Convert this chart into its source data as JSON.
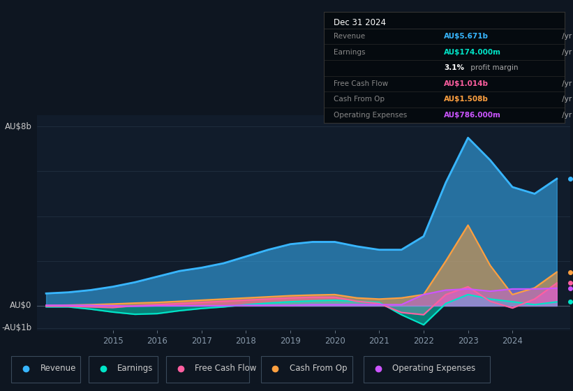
{
  "bg_color": "#0e1621",
  "plot_bg_color": "#111c2b",
  "info_box_bg": "#050a0f",
  "info_box": {
    "title": "Dec 31 2024",
    "rows": [
      {
        "label": "Revenue",
        "value": "AU$5.671b",
        "suffix": " /yr",
        "color": "#38b6ff"
      },
      {
        "label": "Earnings",
        "value": "AU$174.000m",
        "suffix": " /yr",
        "color": "#00e5c8"
      },
      {
        "label": "",
        "value": "3.1%",
        "suffix": " profit margin",
        "color": "#ffffff"
      },
      {
        "label": "Free Cash Flow",
        "value": "AU$1.014b",
        "suffix": " /yr",
        "color": "#ff5fa0"
      },
      {
        "label": "Cash From Op",
        "value": "AU$1.508b",
        "suffix": " /yr",
        "color": "#ffa040"
      },
      {
        "label": "Operating Expenses",
        "value": "AU$786.000m",
        "suffix": " /yr",
        "color": "#cc55ff"
      }
    ]
  },
  "years": [
    2013.5,
    2014.0,
    2014.5,
    2015.0,
    2015.5,
    2016.0,
    2016.5,
    2017.0,
    2017.5,
    2018.0,
    2018.5,
    2019.0,
    2019.5,
    2020.0,
    2020.5,
    2021.0,
    2021.5,
    2022.0,
    2022.5,
    2023.0,
    2023.5,
    2024.0,
    2024.5,
    2025.0
  ],
  "revenue": [
    0.55,
    0.6,
    0.7,
    0.85,
    1.05,
    1.3,
    1.55,
    1.7,
    1.9,
    2.2,
    2.5,
    2.75,
    2.85,
    2.85,
    2.65,
    2.5,
    2.5,
    3.1,
    5.5,
    7.5,
    6.5,
    5.3,
    5.0,
    5.671
  ],
  "earnings": [
    -0.05,
    -0.05,
    -0.15,
    -0.28,
    -0.38,
    -0.35,
    -0.22,
    -0.12,
    -0.05,
    0.05,
    0.12,
    0.18,
    0.22,
    0.25,
    0.2,
    0.15,
    -0.4,
    -0.85,
    0.1,
    0.5,
    0.3,
    0.18,
    0.05,
    0.174
  ],
  "free_cash_flow": [
    -0.02,
    -0.02,
    -0.05,
    -0.08,
    0.0,
    0.05,
    0.1,
    0.15,
    0.2,
    0.25,
    0.3,
    0.35,
    0.38,
    0.38,
    0.2,
    0.1,
    -0.3,
    -0.4,
    0.5,
    0.85,
    0.2,
    -0.1,
    0.3,
    1.014
  ],
  "cash_from_op": [
    0.02,
    0.03,
    0.05,
    0.08,
    0.12,
    0.15,
    0.2,
    0.25,
    0.3,
    0.35,
    0.4,
    0.45,
    0.48,
    0.5,
    0.35,
    0.3,
    0.35,
    0.5,
    2.0,
    3.6,
    1.8,
    0.5,
    0.8,
    1.508
  ],
  "op_expenses": [
    0.02,
    0.02,
    0.02,
    0.0,
    -0.02,
    0.0,
    0.0,
    0.0,
    0.0,
    0.02,
    0.02,
    0.02,
    0.05,
    0.05,
    0.05,
    0.05,
    0.05,
    0.5,
    0.7,
    0.75,
    0.65,
    0.75,
    0.75,
    0.786
  ],
  "revenue_color": "#38b6ff",
  "earnings_color": "#00e5c8",
  "fcf_color": "#ff5fa0",
  "cash_op_color": "#ffa040",
  "op_exp_color": "#cc55ff",
  "xlim": [
    2013.3,
    2025.3
  ],
  "ylim": [
    -1.1,
    8.5
  ],
  "ytick_labels": [
    [
      "AU$8b",
      8.0
    ],
    [
      "AU$0",
      0.0
    ],
    [
      "-AU$1b",
      -1.0
    ]
  ],
  "xtick_years": [
    2015,
    2016,
    2017,
    2018,
    2019,
    2020,
    2021,
    2022,
    2023,
    2024
  ],
  "grid_y": [
    -1.0,
    0.0,
    2.0,
    4.0,
    6.0,
    8.0
  ],
  "legend_items": [
    {
      "label": "Revenue",
      "color": "#38b6ff"
    },
    {
      "label": "Earnings",
      "color": "#00e5c8"
    },
    {
      "label": "Free Cash Flow",
      "color": "#ff5fa0"
    },
    {
      "label": "Cash From Op",
      "color": "#ffa040"
    },
    {
      "label": "Operating Expenses",
      "color": "#cc55ff"
    }
  ]
}
